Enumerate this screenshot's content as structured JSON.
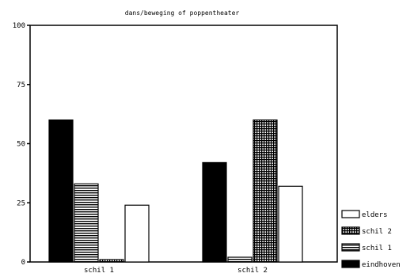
{
  "chart_data": {
    "type": "bar",
    "title": "dans/beweging of poppentheater",
    "categories": [
      "schil 1",
      "schil 2"
    ],
    "ylim": [
      0,
      100
    ],
    "yticks": [
      0,
      25,
      50,
      75,
      100
    ],
    "series": [
      {
        "name": "eindhoven",
        "values": [
          60,
          42
        ],
        "color": "#000000",
        "pattern": "solid"
      },
      {
        "name": "schil 1",
        "values": [
          33,
          2
        ],
        "color": "#000000",
        "pattern": "hlines"
      },
      {
        "name": "schil 2",
        "values": [
          1,
          60
        ],
        "color": "#000000",
        "pattern": "grid"
      },
      {
        "name": "elders",
        "values": [
          24,
          32
        ],
        "color": "#ffffff",
        "pattern": "empty"
      }
    ],
    "legend_order": [
      "elders",
      "schil 2",
      "schil 1",
      "eindhoven"
    ],
    "legend_position": "bottom-right",
    "grid": false
  }
}
